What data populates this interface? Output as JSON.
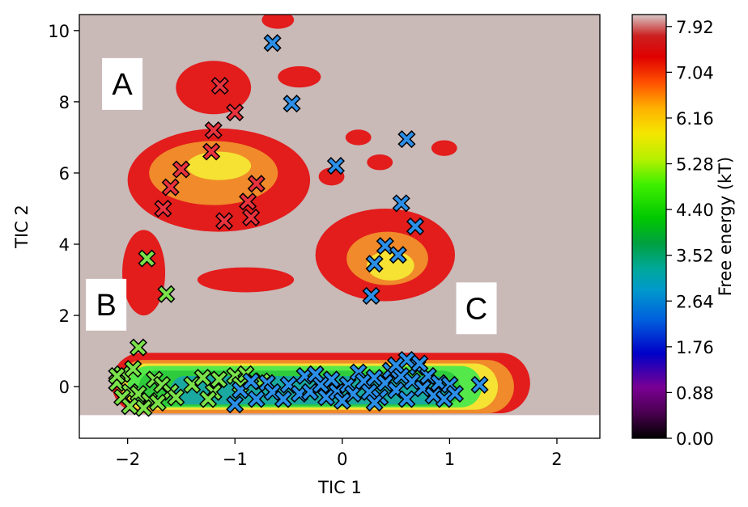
{
  "chart_data": {
    "type": "scatter",
    "subtype": "free-energy landscape contour with cluster markers",
    "xlabel": "TIC 1",
    "ylabel": "TIC 2",
    "xlim": [
      -2.45,
      2.4
    ],
    "ylim": [
      -1.45,
      10.45
    ],
    "xticks": [
      -2,
      -1,
      0,
      1,
      2
    ],
    "xtick_labels": [
      "−2",
      "−1",
      "0",
      "1",
      "2"
    ],
    "yticks": [
      0,
      2,
      4,
      6,
      8,
      10
    ],
    "ytick_labels": [
      "0",
      "2",
      "4",
      "6",
      "8",
      "10"
    ],
    "colorbar": {
      "label": "Free energy (kT)",
      "range": [
        0,
        8.15
      ],
      "ticks": [
        0.0,
        0.88,
        1.76,
        2.64,
        3.52,
        4.4,
        5.28,
        6.16,
        7.04,
        7.92
      ],
      "tick_labels": [
        "0.00",
        "0.88",
        "1.76",
        "2.64",
        "3.52",
        "4.40",
        "5.28",
        "6.16",
        "7.04",
        "7.92"
      ],
      "colormap": "nipy_spectral"
    },
    "background_color": "#c9b9b7",
    "region_labels": [
      {
        "text": "A",
        "x": -2.05,
        "y": 8.5
      },
      {
        "text": "B",
        "x": -2.2,
        "y": 2.3
      },
      {
        "text": "C",
        "x": 1.25,
        "y": 2.2
      }
    ],
    "contours": [
      {
        "level": 7.8,
        "color": "#e31c1c",
        "shape": "band",
        "center": [
          -0.2,
          0.1
        ],
        "half_length": 1.95,
        "half_height": 0.85
      },
      {
        "level": 7.0,
        "color": "#f08a2a",
        "shape": "band",
        "center": [
          -0.25,
          0.0
        ],
        "half_length": 1.85,
        "half_height": 0.75
      },
      {
        "level": 6.2,
        "color": "#f5e233",
        "shape": "band",
        "center": [
          -0.3,
          0.0
        ],
        "half_length": 1.75,
        "half_height": 0.65
      },
      {
        "level": 5.3,
        "color": "#55e84a",
        "shape": "band",
        "center": [
          -0.35,
          0.0
        ],
        "half_length": 1.65,
        "half_height": 0.58
      },
      {
        "level": 4.4,
        "color": "#2ecb3c",
        "shape": "band",
        "center": [
          -0.4,
          -0.05
        ],
        "half_length": 1.5,
        "half_height": 0.5
      },
      {
        "level": 3.5,
        "color": "#1aa9a0",
        "shape": "band",
        "center": [
          -0.3,
          -0.1
        ],
        "half_length": 1.3,
        "half_height": 0.4
      },
      {
        "level": 7.8,
        "color": "#e31c1c",
        "shape": "blob",
        "center": [
          -1.15,
          5.8
        ],
        "rx": 0.85,
        "ry": 1.45
      },
      {
        "level": 7.8,
        "color": "#e31c1c",
        "shape": "blob",
        "center": [
          -1.2,
          8.4
        ],
        "rx": 0.35,
        "ry": 0.75
      },
      {
        "level": 7.0,
        "color": "#f08a2a",
        "shape": "blob",
        "center": [
          -1.2,
          6.0
        ],
        "rx": 0.6,
        "ry": 0.9
      },
      {
        "level": 6.2,
        "color": "#f5e233",
        "shape": "blob",
        "center": [
          -1.15,
          6.2
        ],
        "rx": 0.3,
        "ry": 0.4
      },
      {
        "level": 7.8,
        "color": "#e31c1c",
        "shape": "blob",
        "center": [
          0.4,
          3.7
        ],
        "rx": 0.65,
        "ry": 1.3
      },
      {
        "level": 7.0,
        "color": "#f08a2a",
        "shape": "blob",
        "center": [
          0.42,
          3.6
        ],
        "rx": 0.38,
        "ry": 0.75
      },
      {
        "level": 6.2,
        "color": "#f5e233",
        "shape": "blob",
        "center": [
          0.45,
          3.4
        ],
        "rx": 0.22,
        "ry": 0.42
      },
      {
        "level": 7.8,
        "color": "#e31c1c",
        "shape": "blob",
        "center": [
          -1.85,
          3.2
        ],
        "rx": 0.2,
        "ry": 1.2
      },
      {
        "level": 7.8,
        "color": "#e31c1c",
        "shape": "blob",
        "center": [
          -0.9,
          3.0
        ],
        "rx": 0.45,
        "ry": 0.35
      },
      {
        "level": 7.8,
        "color": "#e31c1c",
        "shape": "blob",
        "center": [
          -0.6,
          10.3
        ],
        "rx": 0.15,
        "ry": 0.25
      },
      {
        "level": 7.8,
        "color": "#e31c1c",
        "shape": "blob",
        "center": [
          -0.4,
          8.7
        ],
        "rx": 0.2,
        "ry": 0.3
      },
      {
        "level": 7.8,
        "color": "#e31c1c",
        "shape": "blob",
        "center": [
          0.15,
          7.0
        ],
        "rx": 0.12,
        "ry": 0.22
      },
      {
        "level": 7.8,
        "color": "#e31c1c",
        "shape": "blob",
        "center": [
          0.35,
          6.3
        ],
        "rx": 0.12,
        "ry": 0.22
      },
      {
        "level": 7.8,
        "color": "#e31c1c",
        "shape": "blob",
        "center": [
          0.95,
          6.7
        ],
        "rx": 0.12,
        "ry": 0.22
      },
      {
        "level": 7.8,
        "color": "#e31c1c",
        "shape": "blob",
        "center": [
          -0.1,
          5.9
        ],
        "rx": 0.12,
        "ry": 0.25
      }
    ],
    "series": [
      {
        "name": "A",
        "color": "#e8323d",
        "points": [
          [
            -1.14,
            8.45
          ],
          [
            -1.0,
            7.7
          ],
          [
            -1.2,
            7.2
          ],
          [
            -1.22,
            6.6
          ],
          [
            -1.5,
            6.1
          ],
          [
            -1.6,
            5.6
          ],
          [
            -1.67,
            5.0
          ],
          [
            -1.1,
            4.65
          ],
          [
            -0.8,
            5.7
          ],
          [
            -0.88,
            5.2
          ],
          [
            -0.85,
            4.75
          ]
        ]
      },
      {
        "name": "B",
        "color": "#7be24a",
        "points": [
          [
            -1.82,
            3.6
          ],
          [
            -1.64,
            2.6
          ],
          [
            -1.9,
            1.1
          ],
          [
            -2.05,
            0.35
          ],
          [
            -1.95,
            0.5
          ],
          [
            -2.1,
            0.1
          ],
          [
            -1.98,
            -0.15
          ],
          [
            -2.05,
            -0.3
          ],
          [
            -1.9,
            -0.2
          ],
          [
            -1.8,
            -0.4
          ],
          [
            -1.75,
            0.2
          ],
          [
            -1.68,
            0.05
          ],
          [
            -1.6,
            -0.15
          ],
          [
            -1.85,
            -0.6
          ],
          [
            -1.98,
            -0.55
          ],
          [
            -1.55,
            -0.3
          ],
          [
            -1.4,
            0.05
          ],
          [
            -1.2,
            -0.15
          ],
          [
            -1.25,
            -0.35
          ],
          [
            -1.15,
            0.2
          ],
          [
            -1.0,
            0.3
          ],
          [
            -0.95,
            0.05
          ],
          [
            -0.9,
            0.35
          ],
          [
            -0.75,
            0.15
          ],
          [
            -2.1,
            0.3
          ],
          [
            -1.72,
            -0.45
          ],
          [
            -1.3,
            0.25
          ]
        ]
      },
      {
        "name": "C",
        "color": "#2b8fe8",
        "points": [
          [
            -0.65,
            9.65
          ],
          [
            -0.47,
            7.95
          ],
          [
            -0.06,
            6.2
          ],
          [
            0.6,
            6.95
          ],
          [
            0.55,
            5.15
          ],
          [
            0.68,
            4.5
          ],
          [
            0.4,
            3.95
          ],
          [
            0.52,
            3.7
          ],
          [
            0.3,
            3.45
          ],
          [
            0.27,
            2.55
          ],
          [
            -1.0,
            -0.5
          ],
          [
            -0.95,
            -0.1
          ],
          [
            -0.85,
            0.15
          ],
          [
            -0.8,
            -0.35
          ],
          [
            -0.7,
            0.1
          ],
          [
            -0.65,
            -0.15
          ],
          [
            -0.55,
            -0.35
          ],
          [
            -0.5,
            0.05
          ],
          [
            -0.4,
            -0.2
          ],
          [
            -0.35,
            0.3
          ],
          [
            -0.3,
            -0.15
          ],
          [
            -0.2,
            0.05
          ],
          [
            -0.15,
            -0.3
          ],
          [
            -0.1,
            0.2
          ],
          [
            -0.05,
            -0.15
          ],
          [
            0.05,
            0.05
          ],
          [
            0.1,
            -0.2
          ],
          [
            0.15,
            0.4
          ],
          [
            0.2,
            0.15
          ],
          [
            0.25,
            -0.15
          ],
          [
            0.3,
            0.25
          ],
          [
            0.35,
            -0.3
          ],
          [
            0.4,
            0.1
          ],
          [
            0.45,
            0.45
          ],
          [
            0.5,
            -0.1
          ],
          [
            0.55,
            0.3
          ],
          [
            0.6,
            -0.35
          ],
          [
            0.65,
            0.15
          ],
          [
            0.7,
            0.55
          ],
          [
            0.75,
            -0.05
          ],
          [
            0.8,
            0.3
          ],
          [
            0.85,
            -0.25
          ],
          [
            0.9,
            0.1
          ],
          [
            0.95,
            -0.35
          ],
          [
            1.0,
            0.05
          ],
          [
            1.05,
            -0.2
          ],
          [
            0.6,
            0.75
          ],
          [
            0.72,
            0.65
          ],
          [
            1.28,
            0.05
          ],
          [
            0.3,
            -0.45
          ],
          [
            -0.25,
            0.35
          ],
          [
            0.0,
            -0.4
          ],
          [
            0.5,
            0.6
          ]
        ]
      }
    ]
  }
}
